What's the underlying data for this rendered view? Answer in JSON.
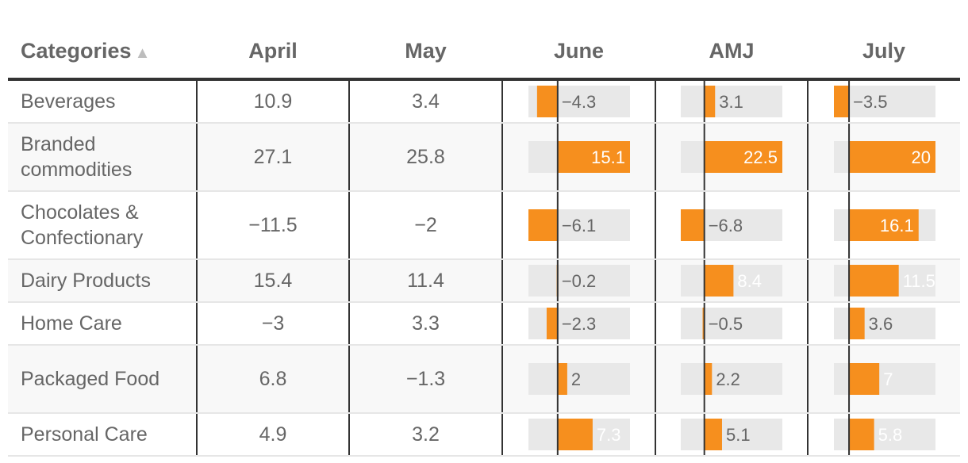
{
  "chart_data": {
    "type": "table",
    "columns": [
      "Categories",
      "April",
      "May",
      "June",
      "AMJ",
      "July"
    ],
    "sort_indicator": "▲",
    "bar_columns": [
      "June",
      "AMJ",
      "July"
    ],
    "rows": [
      {
        "category": "Beverages",
        "april": "10.9",
        "may": "3.4",
        "june": -4.3,
        "amj": 3.1,
        "july": -3.5
      },
      {
        "category": "Branded commodities",
        "april": "27.1",
        "may": "25.8",
        "june": 15.1,
        "amj": 22.5,
        "july": 20
      },
      {
        "category": "Chocolates & Confectionary",
        "april": "−11.5",
        "may": "−2",
        "june": -6.1,
        "amj": -6.8,
        "july": 16.1
      },
      {
        "category": "Dairy Products",
        "april": "15.4",
        "may": "11.4",
        "june": -0.2,
        "amj": 8.4,
        "july": 11.5
      },
      {
        "category": "Home Care",
        "april": "−3",
        "may": "3.3",
        "june": -2.3,
        "amj": -0.5,
        "july": 3.6
      },
      {
        "category": "Packaged Food",
        "april": "6.8",
        "may": "−1.3",
        "june": 2,
        "amj": 2.2,
        "july": 7
      },
      {
        "category": "Personal Care",
        "april": "4.9",
        "may": "3.2",
        "june": 7.3,
        "amj": 5.1,
        "july": 5.8
      }
    ],
    "bar_ranges": {
      "june": [
        -6.1,
        15.1
      ],
      "amj": [
        -6.8,
        22.5
      ],
      "july": [
        -3.5,
        20
      ]
    },
    "colors": {
      "bar": "#f68f1e",
      "track": "#e8e8e8",
      "text": "#666666",
      "bar_text": "#ffffff",
      "zero_line": "#333333"
    }
  }
}
